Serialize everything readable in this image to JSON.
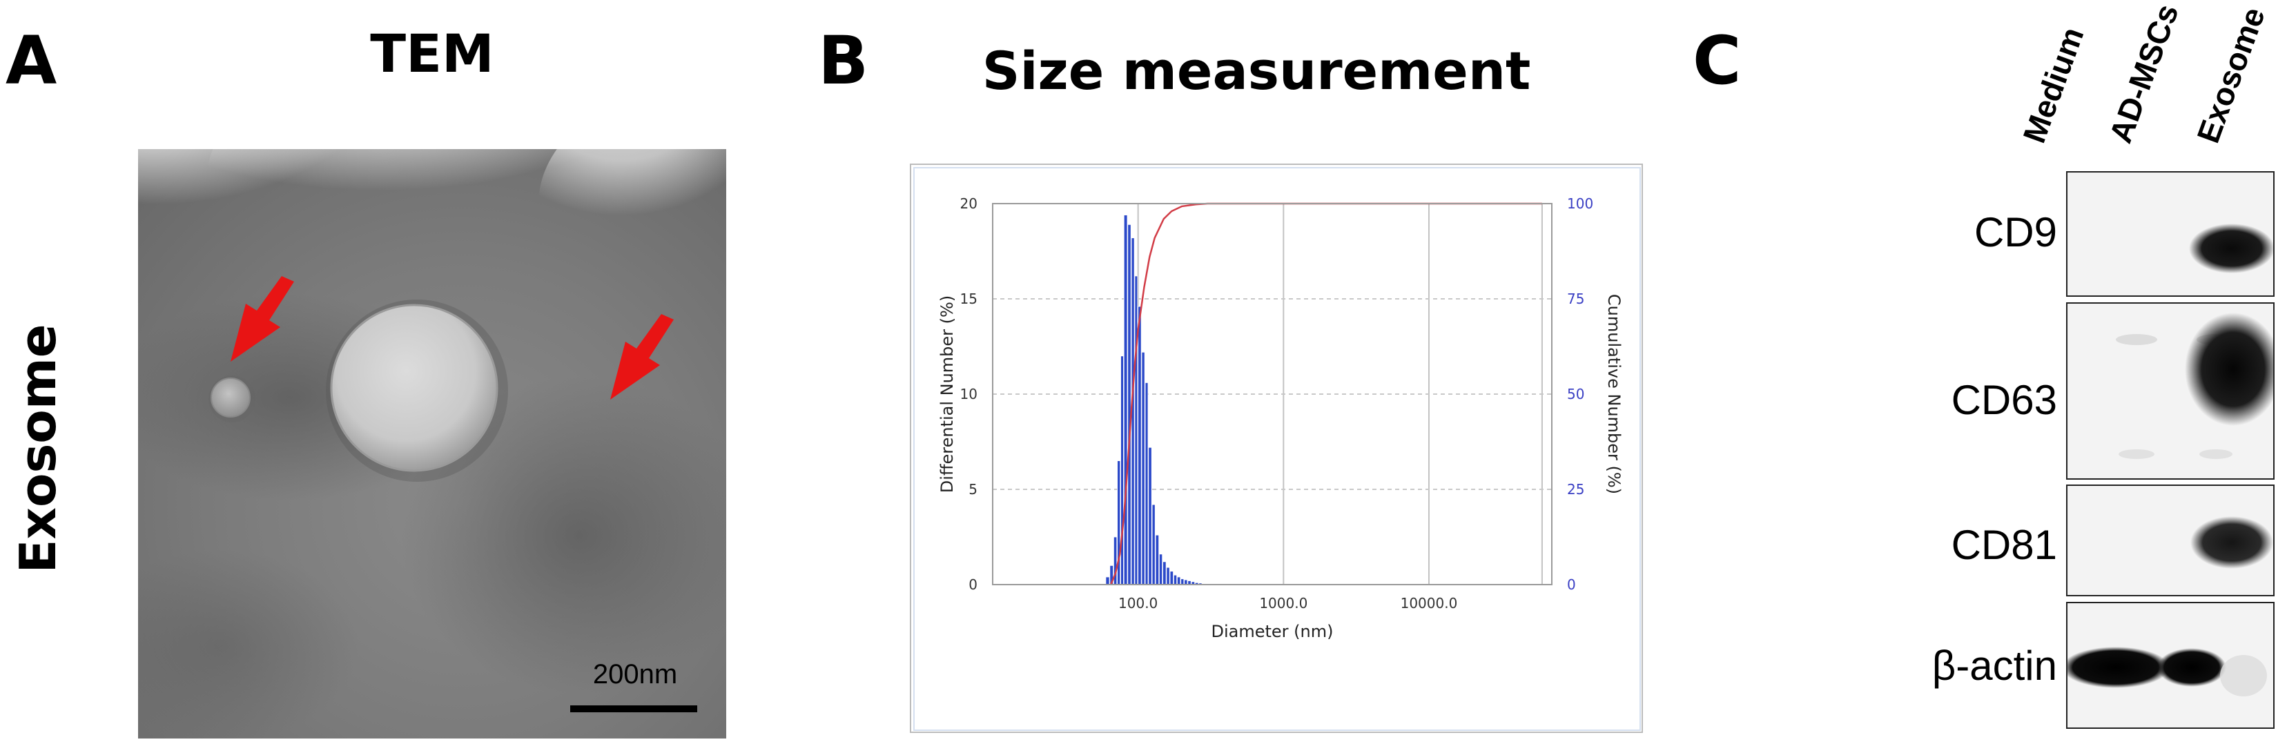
{
  "panels": {
    "a": {
      "letter": "A",
      "title": "TEM",
      "side_label": "Exosome",
      "scale_bar_label": "200nm"
    },
    "b": {
      "letter": "B",
      "title": "Size measurement"
    },
    "c": {
      "letter": "C",
      "lanes": [
        "Medium",
        "AD-MSCs",
        "Exosome"
      ],
      "blots": [
        {
          "label": "CD9",
          "bands": [
            0,
            0,
            0.95
          ]
        },
        {
          "label": "CD63",
          "bands": [
            0.05,
            0.05,
            1.0
          ]
        },
        {
          "label": "CD81",
          "bands": [
            0,
            0,
            0.9
          ]
        },
        {
          "label": "β-actin",
          "bands": [
            1.0,
            1.0,
            0.1
          ]
        }
      ]
    }
  },
  "colors": {
    "arrow": "#e81414",
    "histogram": "#2b49c9",
    "cumulative": "#d23c46",
    "right_axis_text": "#3b40c4"
  },
  "chart_data": {
    "type": "bar",
    "title": "",
    "xlabel": "Diameter (nm)",
    "ylabel": "Differential Number (%)",
    "y2label": "Cumulative Number (%)",
    "xscale": "log",
    "xlim": [
      10,
      70000
    ],
    "ylim": [
      0,
      20
    ],
    "y2lim": [
      0,
      100
    ],
    "x_ticks": [
      "100.0",
      "1000.0",
      "10000.0"
    ],
    "x_tick_values": [
      100,
      1000,
      10000
    ],
    "y_ticks": [
      "0",
      "5",
      "10",
      "15",
      "20"
    ],
    "y2_ticks": [
      "0",
      "25",
      "50",
      "75",
      "100"
    ],
    "grid": true,
    "series": [
      {
        "kind": "histogram",
        "x": [
          60,
          64,
          68,
          72,
          76,
          80,
          85,
          90,
          95,
          100,
          106,
          112,
          118,
          125,
          132,
          140,
          148,
          157,
          166,
          176,
          186,
          197,
          208,
          220,
          233,
          247,
          262,
          277,
          293,
          310
        ],
        "values": [
          0.4,
          1.0,
          2.5,
          6.5,
          12.0,
          19.4,
          18.9,
          18.2,
          16.2,
          14.6,
          12.2,
          10.6,
          7.2,
          4.2,
          2.6,
          1.6,
          1.2,
          0.9,
          0.7,
          0.5,
          0.4,
          0.3,
          0.25,
          0.2,
          0.15,
          0.1,
          0.08,
          0.05,
          0.03,
          0.02
        ]
      },
      {
        "kind": "cumulative",
        "x": [
          65,
          70,
          75,
          80,
          85,
          90,
          95,
          100,
          110,
          120,
          130,
          150,
          170,
          200,
          250,
          300,
          400,
          1000,
          10000,
          60000
        ],
        "values": [
          0,
          3,
          8,
          18,
          32,
          46,
          58,
          67,
          78,
          86,
          91,
          96,
          98,
          99.3,
          99.8,
          100,
          100,
          100,
          100,
          100
        ]
      }
    ]
  }
}
